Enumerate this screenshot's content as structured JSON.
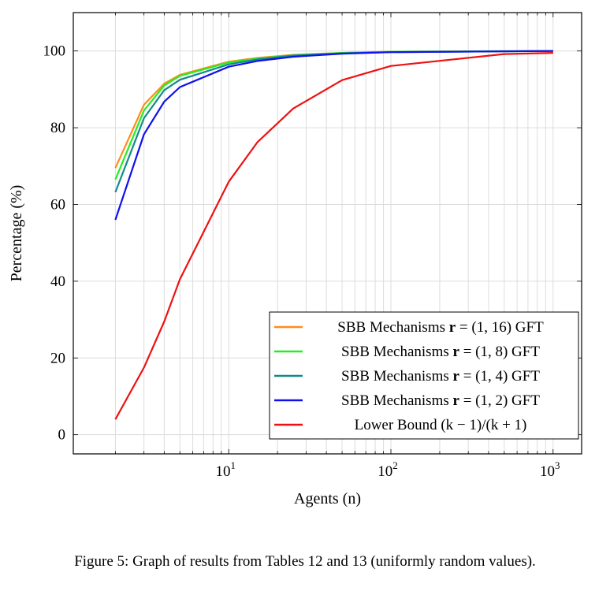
{
  "chart_data": {
    "type": "line",
    "xscale": "log",
    "xlabel": "Agents (n)",
    "ylabel": "Percentage (%)",
    "xlim": [
      1.1,
      1500
    ],
    "ylim": [
      -5,
      110
    ],
    "grid": true,
    "legend_position": "bottom-right",
    "x_ticks": [
      {
        "label_base": "10",
        "label_exp": "1"
      },
      {
        "label_base": "10",
        "label_exp": "2"
      },
      {
        "label_base": "10",
        "label_exp": "3"
      }
    ],
    "y_ticks": [
      "0",
      "20",
      "40",
      "60",
      "80",
      "100"
    ],
    "series": [
      {
        "name": "SBB Mechanisms r = (1,16) GFT",
        "color": "#ff8c1a",
        "x": [
          2,
          3,
          4,
          5,
          10,
          15,
          25,
          50,
          100,
          1000
        ],
        "y": [
          69.5,
          86,
          91.5,
          93.8,
          97.2,
          98.2,
          99,
          99.5,
          99.8,
          100
        ]
      },
      {
        "name": "SBB Mechanisms r = (1,8) GFT",
        "color": "#22ee22",
        "x": [
          2,
          3,
          4,
          5,
          10,
          15,
          25,
          50,
          100,
          1000
        ],
        "y": [
          66.5,
          84.5,
          91,
          93.5,
          97,
          98,
          98.9,
          99.5,
          99.8,
          100
        ]
      },
      {
        "name": "SBB Mechanisms r = (1,4) GFT",
        "color": "#138a8a",
        "x": [
          2,
          3,
          4,
          5,
          10,
          15,
          25,
          50,
          100,
          1000
        ],
        "y": [
          63.2,
          82.5,
          89.8,
          92.5,
          96.5,
          97.8,
          98.8,
          99.4,
          99.7,
          100
        ]
      },
      {
        "name": "SBB Mechanisms r = (1,2) GFT",
        "color": "#1010ee",
        "x": [
          2,
          3,
          4,
          5,
          10,
          15,
          25,
          50,
          100,
          1000
        ],
        "y": [
          56,
          78.3,
          86.8,
          90.6,
          95.9,
          97.4,
          98.5,
          99.3,
          99.7,
          100
        ]
      },
      {
        "name": "Lower Bound (k−1)/(k+1)",
        "color": "#ee1111",
        "x": [
          2,
          3,
          4,
          5,
          10,
          15,
          25,
          50,
          100,
          500,
          1000
        ],
        "y": [
          4,
          17.5,
          29.5,
          40.5,
          65.9,
          76.2,
          85,
          92.4,
          96.1,
          99.2,
          99.5
        ]
      }
    ],
    "legend": [
      {
        "prefix": "SBB Mechanisms ",
        "var": "r",
        "suffix": " = (1, 16) GFT",
        "color": "#ff8c1a"
      },
      {
        "prefix": "SBB Mechanisms ",
        "var": "r",
        "suffix": " = (1, 8) GFT",
        "color": "#22ee22"
      },
      {
        "prefix": "SBB Mechanisms ",
        "var": "r",
        "suffix": " = (1, 4) GFT",
        "color": "#138a8a"
      },
      {
        "prefix": "SBB Mechanisms ",
        "var": "r",
        "suffix": " = (1, 2) GFT",
        "color": "#1010ee"
      },
      {
        "prefix": "Lower Bound ",
        "var": "",
        "suffix": "(k − 1)/(k + 1)",
        "color": "#ee1111"
      }
    ]
  },
  "caption": "Figure 5: Graph of results from Tables 12 and 13 (uniformly random values)."
}
